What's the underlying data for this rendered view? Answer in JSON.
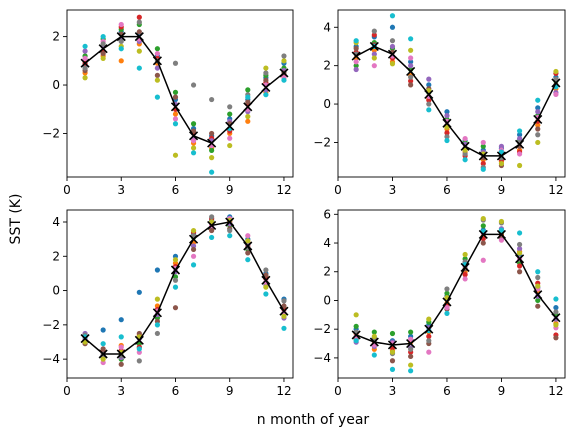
{
  "figure": {
    "xlabel": "n month of year",
    "ylabel": "SST (K)"
  },
  "palette": [
    "#1f77b4",
    "#ff7f0e",
    "#2ca02c",
    "#d62728",
    "#9467bd",
    "#8c564b",
    "#e377c2",
    "#7f7f7f",
    "#bcbd22",
    "#17becf"
  ],
  "chart_data": [
    {
      "type": "scatter",
      "panel": "top-left",
      "xlim": [
        0,
        12.5
      ],
      "ylim": [
        -3.8,
        3.1
      ],
      "xticks": [
        0,
        3,
        6,
        9,
        12
      ],
      "yticks": [
        -2,
        0,
        2
      ],
      "mean_series": {
        "style": "black line with x markers",
        "x": [
          1,
          2,
          3,
          4,
          5,
          6,
          7,
          8,
          9,
          10,
          11,
          12
        ],
        "y": [
          0.9,
          1.5,
          2.0,
          2.0,
          1.0,
          -0.9,
          -2.1,
          -2.4,
          -1.7,
          -0.9,
          -0.1,
          0.5
        ]
      },
      "members": [
        [
          0.8,
          1.6,
          2.2,
          2.1,
          1.2,
          -0.6,
          -1.8,
          -2.1,
          -1.4,
          -0.6,
          0.3,
          0.9
        ],
        [
          0.5,
          1.2,
          1.0,
          1.7,
          0.9,
          -1.2,
          -2.4,
          -2.6,
          -2.0,
          -1.5,
          -0.3,
          0.3
        ],
        [
          1.2,
          1.9,
          2.3,
          2.5,
          1.5,
          -0.3,
          -1.6,
          -2.7,
          -1.2,
          -0.2,
          0.4,
          0.7
        ],
        [
          0.9,
          1.4,
          2.4,
          2.8,
          1.1,
          -1.0,
          -2.0,
          -2.2,
          -1.9,
          -0.8,
          0.1,
          0.4
        ],
        [
          1.4,
          1.6,
          1.9,
          1.8,
          0.7,
          -0.8,
          -2.2,
          -2.3,
          -1.5,
          -1.1,
          -0.2,
          0.6
        ],
        [
          0.6,
          1.3,
          2.1,
          2.2,
          0.4,
          -0.5,
          -1.9,
          -2.0,
          -1.6,
          -0.7,
          0.2,
          0.5
        ],
        [
          1.1,
          1.8,
          2.5,
          1.9,
          1.3,
          -1.4,
          -2.3,
          -2.5,
          -2.2,
          -1.0,
          0.0,
          0.3
        ],
        [
          0.7,
          1.7,
          1.8,
          2.6,
          1.0,
          0.9,
          0.0,
          -0.6,
          -0.9,
          -0.4,
          0.5,
          1.2
        ],
        [
          0.3,
          1.1,
          1.6,
          1.4,
          0.2,
          -2.9,
          -2.6,
          -3.0,
          -2.5,
          -1.3,
          0.7,
          1.0
        ],
        [
          1.6,
          2.0,
          1.5,
          0.7,
          -0.5,
          -1.6,
          -2.8,
          -3.6,
          -1.8,
          -0.5,
          -0.4,
          0.2
        ]
      ]
    },
    {
      "type": "scatter",
      "panel": "top-right",
      "xlim": [
        0,
        12.5
      ],
      "ylim": [
        -3.8,
        4.9
      ],
      "xticks": [
        0,
        3,
        6,
        9,
        12
      ],
      "yticks": [
        -2,
        0,
        2,
        4
      ],
      "mean_series": {
        "style": "black line with x markers",
        "x": [
          1,
          2,
          3,
          4,
          5,
          6,
          7,
          8,
          9,
          10,
          11,
          12
        ],
        "y": [
          2.5,
          3.0,
          2.6,
          1.7,
          0.5,
          -1.0,
          -2.2,
          -2.7,
          -2.7,
          -2.1,
          -0.8,
          1.1
        ]
      },
      "members": [
        [
          3.0,
          3.5,
          4.0,
          2.2,
          1.0,
          -0.4,
          -1.9,
          -2.4,
          -2.3,
          -1.6,
          -0.2,
          1.4
        ],
        [
          2.4,
          2.8,
          2.2,
          1.5,
          0.3,
          -1.3,
          -2.5,
          -2.9,
          -3.0,
          -2.4,
          -1.1,
          0.8
        ],
        [
          2.0,
          3.2,
          2.9,
          1.8,
          0.6,
          -0.8,
          -2.0,
          -2.2,
          -2.6,
          -1.9,
          -0.6,
          1.2
        ],
        [
          2.7,
          3.6,
          2.4,
          1.2,
          0.2,
          -1.5,
          -2.7,
          -3.1,
          -2.9,
          -2.5,
          -0.9,
          1.6
        ],
        [
          1.8,
          2.6,
          3.0,
          2.0,
          1.3,
          -0.6,
          -2.1,
          -2.5,
          -2.2,
          -1.8,
          -0.4,
          0.6
        ],
        [
          2.9,
          3.1,
          2.7,
          1.0,
          0.8,
          -1.1,
          -2.3,
          -2.8,
          -3.2,
          -2.2,
          -1.3,
          1.0
        ],
        [
          2.2,
          2.0,
          2.5,
          2.4,
          0.4,
          -0.9,
          -1.8,
          -2.0,
          -2.4,
          -2.6,
          -0.7,
          0.5
        ],
        [
          2.6,
          3.8,
          3.3,
          1.4,
          0.0,
          -1.7,
          -2.6,
          -3.3,
          -2.8,
          -2.0,
          -1.6,
          1.3
        ],
        [
          3.2,
          2.4,
          2.1,
          2.8,
          0.7,
          -1.2,
          -2.4,
          -2.6,
          -3.1,
          -3.2,
          -2.0,
          1.7
        ],
        [
          3.3,
          3.0,
          4.6,
          3.4,
          -0.3,
          -1.9,
          -2.9,
          -3.4,
          -2.5,
          -1.4,
          0.2,
          0.9
        ]
      ]
    },
    {
      "type": "scatter",
      "panel": "bottom-left",
      "xlim": [
        0,
        12.5
      ],
      "ylim": [
        -5.1,
        4.7
      ],
      "xticks": [
        0,
        3,
        6,
        9,
        12
      ],
      "yticks": [
        -4,
        -2,
        0,
        2,
        4
      ],
      "mean_series": {
        "style": "black line with x markers",
        "x": [
          1,
          2,
          3,
          4,
          5,
          6,
          7,
          8,
          9,
          10,
          11,
          12
        ],
        "y": [
          -2.8,
          -3.7,
          -3.7,
          -2.9,
          -1.3,
          1.2,
          3.0,
          3.8,
          4.0,
          2.6,
          0.6,
          -1.2
        ]
      },
      "members": [
        [
          -2.6,
          -2.3,
          -1.7,
          -0.1,
          1.2,
          2.0,
          3.3,
          4.1,
          4.3,
          3.0,
          1.0,
          -0.5
        ],
        [
          -3.0,
          -3.5,
          -3.2,
          -2.6,
          -0.9,
          1.6,
          2.8,
          3.6,
          4.1,
          2.8,
          0.8,
          -1.0
        ],
        [
          -2.7,
          -3.9,
          -4.0,
          -3.1,
          -1.6,
          0.8,
          3.1,
          3.9,
          3.8,
          2.4,
          0.4,
          -1.4
        ],
        [
          -2.9,
          -3.6,
          -3.5,
          -3.3,
          -1.1,
          1.4,
          3.4,
          4.2,
          4.0,
          2.6,
          0.7,
          -1.1
        ],
        [
          -2.5,
          -3.8,
          -3.9,
          -2.8,
          -1.4,
          1.1,
          2.6,
          3.7,
          3.9,
          2.7,
          0.3,
          -1.6
        ],
        [
          -3.1,
          -3.4,
          -4.3,
          -2.5,
          -1.8,
          -1.0,
          2.4,
          3.5,
          3.6,
          2.2,
          0.9,
          -0.9
        ],
        [
          -2.8,
          -4.2,
          -3.3,
          -3.6,
          -1.2,
          1.3,
          2.0,
          3.8,
          4.2,
          3.2,
          0.5,
          -1.3
        ],
        [
          -2.6,
          -3.7,
          -3.8,
          -4.1,
          -2.5,
          0.6,
          3.2,
          4.3,
          3.5,
          2.5,
          1.2,
          -0.6
        ],
        [
          -3.0,
          -4.0,
          -3.6,
          -2.7,
          -0.5,
          1.8,
          3.5,
          4.0,
          4.1,
          2.9,
          0.2,
          -1.5
        ],
        [
          -2.7,
          -3.1,
          -2.7,
          -3.4,
          -2.0,
          0.2,
          1.5,
          3.1,
          3.2,
          1.8,
          -0.2,
          -2.2
        ]
      ]
    },
    {
      "type": "scatter",
      "panel": "bottom-right",
      "xlim": [
        0,
        12.5
      ],
      "ylim": [
        -5.4,
        6.3
      ],
      "xticks": [
        0,
        3,
        6,
        9,
        12
      ],
      "yticks": [
        -4,
        -2,
        0,
        2,
        4,
        6
      ],
      "mean_series": {
        "style": "black line with x markers",
        "x": [
          1,
          2,
          3,
          4,
          5,
          6,
          7,
          8,
          9,
          10,
          11,
          12
        ],
        "y": [
          -2.4,
          -2.9,
          -3.1,
          -3.0,
          -2.0,
          -0.1,
          2.3,
          4.6,
          4.6,
          2.9,
          0.4,
          -1.2
        ]
      },
      "members": [
        [
          -2.0,
          -2.6,
          -2.8,
          -2.5,
          -1.7,
          0.3,
          2.6,
          4.9,
          4.4,
          3.1,
          0.9,
          -0.5
        ],
        [
          -2.3,
          -3.4,
          -3.5,
          -2.9,
          -2.2,
          -0.2,
          2.0,
          4.5,
          4.8,
          3.4,
          0.6,
          -1.6
        ],
        [
          -1.8,
          -2.2,
          -2.3,
          -2.2,
          -1.5,
          0.5,
          2.9,
          5.2,
          4.6,
          2.6,
          0.0,
          -1.0
        ],
        [
          -2.6,
          -3.0,
          -3.3,
          -3.6,
          -2.5,
          -0.4,
          1.8,
          4.3,
          4.5,
          2.4,
          1.2,
          -2.4
        ],
        [
          -2.9,
          -3.2,
          -2.9,
          -3.3,
          -1.9,
          0.1,
          2.4,
          4.7,
          5.0,
          3.6,
          0.3,
          -1.3
        ],
        [
          -2.7,
          -2.7,
          -4.2,
          -3.9,
          -3.0,
          -0.6,
          2.2,
          4.0,
          4.3,
          2.0,
          -0.4,
          -2.6
        ],
        [
          -2.5,
          -3.1,
          -3.0,
          -2.7,
          -3.6,
          -0.5,
          1.5,
          2.8,
          4.2,
          2.9,
          0.8,
          -1.9
        ],
        [
          -2.2,
          -2.8,
          -3.7,
          -3.4,
          -2.8,
          0.8,
          2.7,
          5.6,
          5.4,
          3.9,
          1.6,
          -0.8
        ],
        [
          -1.0,
          -2.5,
          -3.6,
          -4.5,
          -1.3,
          0.2,
          3.2,
          5.7,
          5.5,
          3.3,
          1.0,
          -1.7
        ],
        [
          -2.8,
          -3.8,
          -4.8,
          -4.9,
          -2.1,
          -0.9,
          2.5,
          4.8,
          4.9,
          4.7,
          2.0,
          0.1
        ]
      ]
    }
  ]
}
